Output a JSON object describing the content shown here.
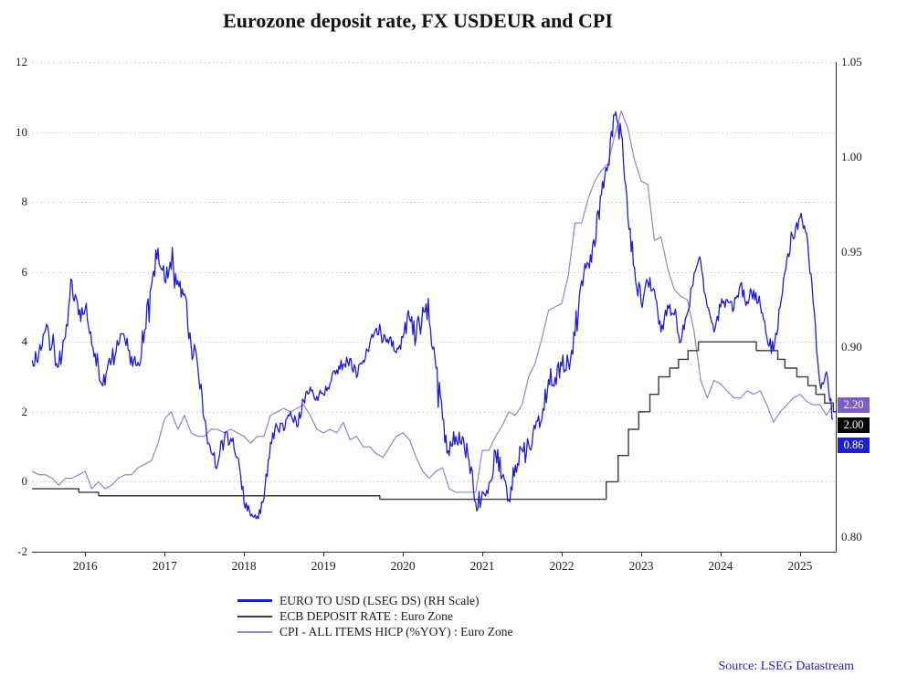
{
  "chart_data": {
    "type": "line",
    "title": "Eurozone deposit rate, FX USDEUR and CPI",
    "source": "Source: LSEG Datastream",
    "grid": {
      "color": "#c8c8c8",
      "style": "dotted"
    },
    "left_axis": {
      "range": [
        -2,
        12
      ],
      "ticks": [
        12,
        10,
        8,
        6,
        4,
        2,
        0,
        -2
      ]
    },
    "right_axis": {
      "range": [
        0.8,
        1.05
      ],
      "ticks": [
        1.05,
        1.0,
        0.95,
        0.9,
        0.8
      ],
      "labels": [
        "1.05",
        "1.00",
        "0.95",
        "0.90",
        "0.80"
      ]
    },
    "x_axis": {
      "range": [
        2015.33,
        2025.45
      ],
      "ticks": [
        2016,
        2017,
        2018,
        2019,
        2020,
        2021,
        2022,
        2023,
        2024,
        2025
      ]
    },
    "series": [
      {
        "label": "EURO TO USD (LSEG DS) (RH Scale)",
        "color": "#1e1ed2",
        "axis": "right",
        "style": "noisy",
        "x_start": 2015.3333,
        "x_step": 0.0833333,
        "values": [
          0.893,
          0.897,
          0.909,
          0.901,
          0.89,
          0.905,
          0.935,
          0.917,
          0.92,
          0.901,
          0.89,
          0.88,
          0.893,
          0.901,
          0.904,
          0.895,
          0.892,
          0.909,
          0.932,
          0.952,
          0.935,
          0.941,
          0.935,
          0.928,
          0.901,
          0.89,
          0.862,
          0.845,
          0.838,
          0.851,
          0.852,
          0.842,
          0.818,
          0.811,
          0.811,
          0.82,
          0.85,
          0.858,
          0.856,
          0.866,
          0.858,
          0.872,
          0.879,
          0.874,
          0.875,
          0.881,
          0.888,
          0.891,
          0.894,
          0.884,
          0.893,
          0.902,
          0.91,
          0.903,
          0.905,
          0.897,
          0.905,
          0.915,
          0.905,
          0.921,
          0.913,
          0.889,
          0.862,
          0.843,
          0.853,
          0.853,
          0.84,
          0.818,
          0.824,
          0.828,
          0.845,
          0.832,
          0.82,
          0.838,
          0.846,
          0.849,
          0.857,
          0.862,
          0.883,
          0.884,
          0.89,
          0.892,
          0.906,
          0.935,
          0.944,
          0.953,
          0.98,
          0.996,
          1.022,
          1.012,
          0.968,
          0.942,
          0.923,
          0.934,
          0.93,
          0.908,
          0.922,
          0.917,
          0.903,
          0.918,
          0.939,
          0.945,
          0.921,
          0.908,
          0.921,
          0.925,
          0.92,
          0.933,
          0.924,
          0.93,
          0.922,
          0.905,
          0.898,
          0.921,
          0.946,
          0.957,
          0.968,
          0.96,
          0.923,
          0.881,
          0.887,
          0.862
        ]
      },
      {
        "label": "ECB DEPOSIT RATE : Euro Zone",
        "color": "#3a3a3a",
        "axis": "left",
        "style": "step",
        "points": [
          [
            2015.33,
            -0.2
          ],
          [
            2015.92,
            -0.3
          ],
          [
            2016.17,
            -0.4
          ],
          [
            2019.71,
            -0.5
          ],
          [
            2022.56,
            0.0
          ],
          [
            2022.71,
            0.75
          ],
          [
            2022.84,
            1.5
          ],
          [
            2022.97,
            2.0
          ],
          [
            2023.11,
            2.5
          ],
          [
            2023.22,
            3.0
          ],
          [
            2023.36,
            3.25
          ],
          [
            2023.47,
            3.5
          ],
          [
            2023.59,
            3.75
          ],
          [
            2023.72,
            4.0
          ],
          [
            2024.45,
            3.75
          ],
          [
            2024.72,
            3.5
          ],
          [
            2024.81,
            3.25
          ],
          [
            2024.96,
            3.0
          ],
          [
            2025.1,
            2.75
          ],
          [
            2025.2,
            2.5
          ],
          [
            2025.31,
            2.25
          ],
          [
            2025.42,
            2.0
          ]
        ]
      },
      {
        "label": "CPI - ALL ITEMS HICP (%YOY) : Euro Zone",
        "color": "#9a7fd1",
        "axis": "left",
        "style": "line",
        "x_start": 2015.3333,
        "x_step": 0.0833333,
        "values": [
          0.3,
          0.2,
          0.2,
          0.1,
          -0.1,
          0.1,
          0.1,
          0.2,
          0.3,
          -0.2,
          0.0,
          -0.2,
          -0.1,
          0.1,
          0.2,
          0.2,
          0.4,
          0.5,
          0.6,
          1.1,
          1.8,
          2.0,
          1.5,
          1.9,
          1.4,
          1.3,
          1.3,
          1.5,
          1.5,
          1.4,
          1.5,
          1.4,
          1.3,
          1.1,
          1.3,
          1.3,
          1.9,
          2.0,
          2.1,
          2.0,
          2.1,
          2.2,
          1.9,
          1.5,
          1.4,
          1.5,
          1.4,
          1.7,
          1.2,
          1.3,
          1.0,
          1.0,
          0.8,
          0.7,
          1.0,
          1.3,
          1.4,
          1.2,
          0.7,
          0.3,
          0.1,
          0.3,
          0.4,
          -0.2,
          -0.3,
          -0.3,
          -0.3,
          -0.3,
          0.9,
          0.9,
          1.3,
          1.6,
          2.0,
          1.9,
          2.2,
          3.0,
          3.4,
          4.1,
          4.9,
          5.0,
          5.1,
          5.9,
          7.4,
          7.4,
          8.1,
          8.6,
          8.9,
          9.1,
          9.9,
          10.6,
          10.1,
          9.2,
          8.6,
          8.5,
          6.9,
          7.0,
          6.1,
          5.5,
          5.3,
          5.2,
          4.3,
          2.9,
          2.4,
          2.9,
          2.8,
          2.6,
          2.4,
          2.4,
          2.6,
          2.5,
          2.6,
          2.2,
          1.7,
          2.0,
          2.2,
          2.4,
          2.5,
          2.3,
          2.2,
          2.2,
          1.9,
          2.2
        ]
      }
    ],
    "end_labels": [
      {
        "text": "2.20",
        "value": 2.2,
        "axis": "left",
        "bg": "#7b5ec7"
      },
      {
        "text": "2.00",
        "value": 2.0,
        "axis": "left",
        "bg": "#000000"
      },
      {
        "text": "0.86",
        "value": 0.862,
        "axis": "right",
        "bg": "#1e1ed2"
      }
    ],
    "legend_position": "bottom"
  }
}
